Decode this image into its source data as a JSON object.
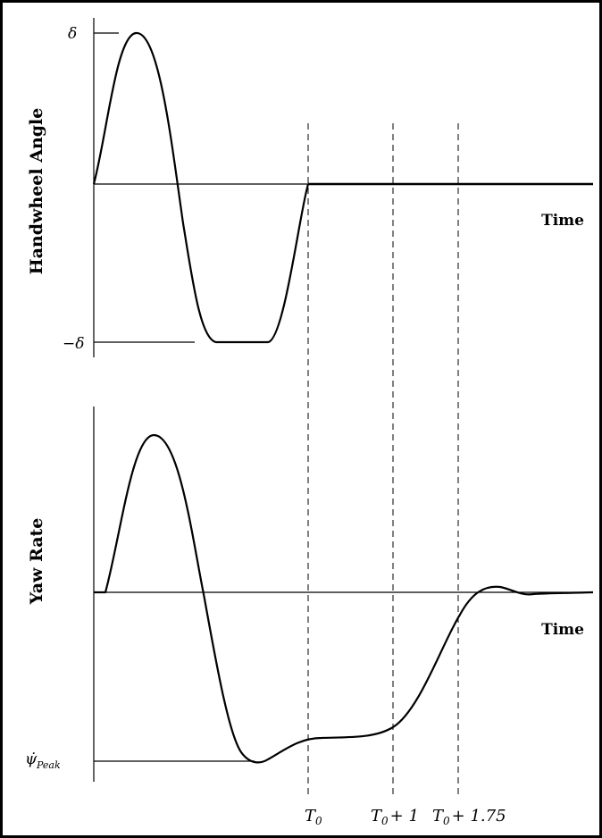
{
  "top_panel": {
    "ylabel": "Handwheel Angle",
    "xlabel": "Time",
    "pos_tick": "δ",
    "neg_tick": "−δ"
  },
  "bottom_panel": {
    "ylabel": "Yaw Rate",
    "xlabel": "Time",
    "peak_symbol": "ψ̇",
    "peak_subscript": "Peak"
  },
  "markers": {
    "t0": {
      "main": "T",
      "sub": "0",
      "rest": ""
    },
    "t1": {
      "main": "T",
      "sub": "0",
      "rest": "+ 1"
    },
    "t2": {
      "main": "T",
      "sub": "0",
      "rest": "+ 1.75"
    }
  }
}
